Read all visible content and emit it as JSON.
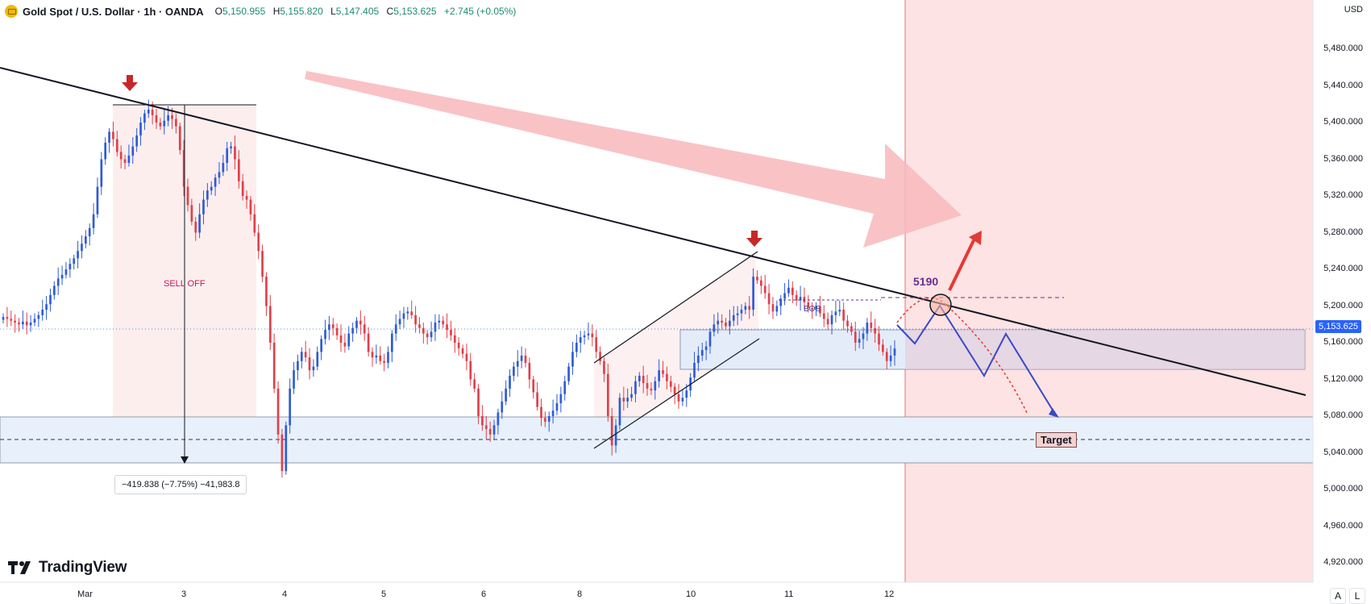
{
  "header": {
    "symbol": "Gold Spot / U.S. Dollar · 1h · OANDA",
    "open_label": "O",
    "open": "5,150.955",
    "high_label": "H",
    "high": "5,155.820",
    "low_label": "L",
    "low": "5,147.405",
    "close_label": "C",
    "close": "5,153.625",
    "change": "+2.745 (+0.05%)"
  },
  "brand": "TradingView",
  "buttons": {
    "auto": "A",
    "log": "L"
  },
  "current_price_label": "5,153.625",
  "annotations": {
    "sell_off": "SELL OFF",
    "bos": "BOS",
    "level": "5190",
    "target": "Target",
    "measure": "−419.838 (−7.75%) −41,983.8"
  },
  "chart_data": {
    "type": "candlestick",
    "title": "Gold Spot / U.S. Dollar · 1h · OANDA",
    "currency": "USD",
    "x_ticks": [
      {
        "label": "Mar",
        "t": 0
      },
      {
        "label": "3",
        "t": 1
      },
      {
        "label": "4",
        "t": 2
      },
      {
        "label": "5",
        "t": 3
      },
      {
        "label": "6",
        "t": 4
      },
      {
        "label": "8",
        "t": 5
      },
      {
        "label": "10",
        "t": 6
      },
      {
        "label": "11",
        "t": 7
      },
      {
        "label": "12",
        "t": 8
      }
    ],
    "y_ticks": [
      "5,480.000",
      "5,440.000",
      "5,400.000",
      "5,360.000",
      "5,320.000",
      "5,280.000",
      "5,240.000",
      "5,200.000",
      "5,160.000",
      "5,120.000",
      "5,080.000",
      "5,040.000",
      "5,000.000",
      "4,960.000",
      "4,920.000"
    ],
    "ylim": [
      4880,
      5520
    ],
    "current_price": 5153.625,
    "closes": [
      5188,
      5186,
      5184,
      5182,
      5180,
      5183,
      5179,
      5182,
      5186,
      5190,
      5196,
      5202,
      5212,
      5222,
      5230,
      5234,
      5240,
      5246,
      5252,
      5260,
      5268,
      5276,
      5285,
      5300,
      5330,
      5360,
      5378,
      5390,
      5382,
      5368,
      5360,
      5356,
      5364,
      5374,
      5386,
      5400,
      5410,
      5414,
      5408,
      5400,
      5396,
      5402,
      5408,
      5404,
      5396,
      5370,
      5330,
      5310,
      5292,
      5280,
      5300,
      5316,
      5326,
      5330,
      5340,
      5346,
      5356,
      5372,
      5374,
      5360,
      5336,
      5320,
      5316,
      5300,
      5280,
      5260,
      5232,
      5200,
      5160,
      5110,
      5060,
      5020,
      5070,
      5110,
      5130,
      5140,
      5150,
      5144,
      5130,
      5134,
      5150,
      5164,
      5174,
      5180,
      5176,
      5168,
      5160,
      5156,
      5170,
      5176,
      5184,
      5180,
      5170,
      5150,
      5144,
      5146,
      5140,
      5138,
      5150,
      5170,
      5180,
      5186,
      5192,
      5194,
      5190,
      5180,
      5176,
      5170,
      5166,
      5172,
      5182,
      5184,
      5180,
      5174,
      5168,
      5160,
      5154,
      5148,
      5140,
      5120,
      5110,
      5080,
      5070,
      5066,
      5060,
      5070,
      5084,
      5096,
      5110,
      5124,
      5134,
      5140,
      5146,
      5138,
      5120,
      5106,
      5090,
      5078,
      5074,
      5080,
      5086,
      5094,
      5104,
      5118,
      5134,
      5150,
      5160,
      5166,
      5168,
      5170,
      5166,
      5150,
      5140,
      5126,
      5080,
      5048,
      5070,
      5100,
      5096,
      5100,
      5104,
      5118,
      5124,
      5116,
      5110,
      5108,
      5118,
      5130,
      5126,
      5118,
      5112,
      5104,
      5096,
      5100,
      5108,
      5122,
      5138,
      5146,
      5152,
      5156,
      5172,
      5180,
      5184,
      5182,
      5178,
      5184,
      5190,
      5192,
      5196,
      5200,
      5196,
      5232,
      5228,
      5222,
      5214,
      5202,
      5194,
      5200,
      5208,
      5214,
      5220,
      5212,
      5206,
      5210,
      5204,
      5198,
      5196,
      5200,
      5192,
      5186,
      5180,
      5190,
      5194,
      5196,
      5184,
      5178,
      5172,
      5160,
      5164,
      5170,
      5182,
      5176,
      5170,
      5158,
      5150,
      5140,
      5146,
      5153.625
    ]
  }
}
